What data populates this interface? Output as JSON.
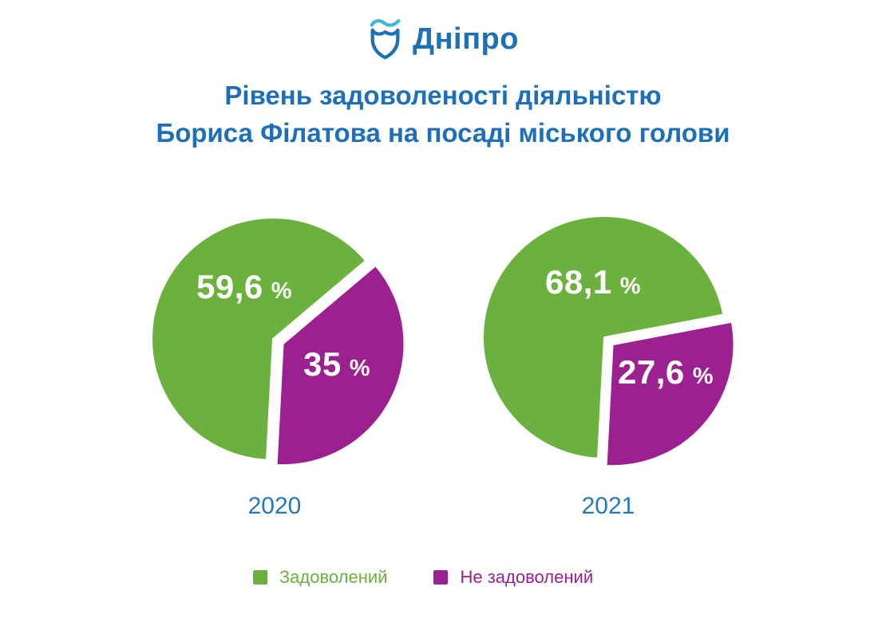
{
  "logo": {
    "text": "Дніпро",
    "icon": "dnipro-shield-wave-icon",
    "shield_color": "#1d70b7",
    "wave_color": "#41b4e0"
  },
  "title": {
    "line1": "Рівень задоволеності діяльністю",
    "line2": "Бориса Філатова на посаді міського голови",
    "color": "#1d70b7"
  },
  "legend": {
    "position": "bottom",
    "items": [
      {
        "label": "Задоволений",
        "color": "#6ab13e"
      },
      {
        "label": "Не задоволений",
        "color": "#9b2190"
      }
    ]
  },
  "chart_data": [
    {
      "type": "pie",
      "year": "2020",
      "slices": [
        {
          "label": "Задоволений",
          "value": 59.6,
          "display": "59,6",
          "unit": "%",
          "color": "#6ab13e",
          "exploded": false
        },
        {
          "label": "Не задоволений",
          "value": 35.0,
          "display": "35",
          "unit": "%",
          "color": "#9b2190",
          "exploded": true
        }
      ]
    },
    {
      "type": "pie",
      "year": "2021",
      "slices": [
        {
          "label": "Задоволений",
          "value": 68.1,
          "display": "68,1",
          "unit": "%",
          "color": "#6ab13e",
          "exploded": false
        },
        {
          "label": "Не задоволений",
          "value": 27.6,
          "display": "27,6",
          "unit": "%",
          "color": "#9b2190",
          "exploded": true
        }
      ]
    }
  ]
}
